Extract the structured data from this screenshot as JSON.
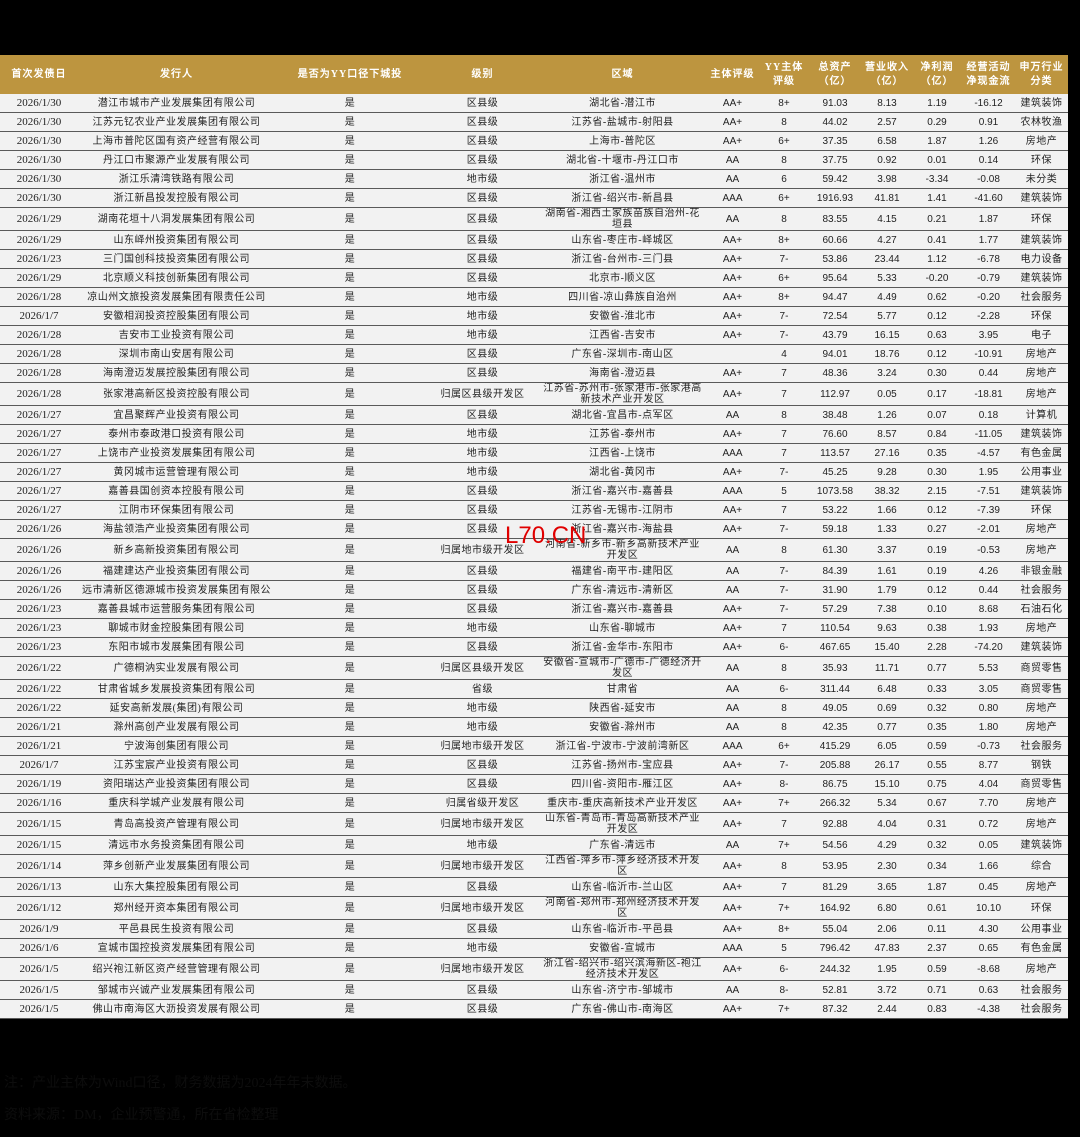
{
  "table": {
    "header_color": "#bd953f",
    "columns": [
      "首次发债日",
      "发行人",
      "是否为YY口径下城投",
      "级别",
      "区域",
      "主体评级",
      "YY主体评级",
      "总资产（亿）",
      "营业收入（亿）",
      "净利润（亿）",
      "经营活动净现金流",
      "申万行业分类"
    ],
    "rows": [
      [
        "2026/1/30",
        "潜江市城市产业发展集团有限公司",
        "是",
        "区县级",
        "湖北省-潜江市",
        "AA+",
        "8+",
        "91.03",
        "8.13",
        "1.19",
        "-16.12",
        "建筑装饰"
      ],
      [
        "2026/1/30",
        "江苏元钇农业产业发展集团有限公司",
        "是",
        "区县级",
        "江苏省-盐城市-射阳县",
        "AA+",
        "8",
        "44.02",
        "2.57",
        "0.29",
        "0.91",
        "农林牧渔"
      ],
      [
        "2026/1/30",
        "上海市普陀区国有资产经营有限公司",
        "是",
        "区县级",
        "上海市-普陀区",
        "AA+",
        "6+",
        "37.35",
        "6.58",
        "1.87",
        "1.26",
        "房地产"
      ],
      [
        "2026/1/30",
        "丹江口市聚源产业发展有限公司",
        "是",
        "区县级",
        "湖北省-十堰市-丹江口市",
        "AA",
        "8",
        "37.75",
        "0.92",
        "0.01",
        "0.14",
        "环保"
      ],
      [
        "2026/1/30",
        "浙江乐清湾铁路有限公司",
        "是",
        "地市级",
        "浙江省-温州市",
        "AA",
        "6",
        "59.42",
        "3.98",
        "-3.34",
        "-0.08",
        "未分类"
      ],
      [
        "2026/1/30",
        "浙江新昌投发控股有限公司",
        "是",
        "区县级",
        "浙江省-绍兴市-新昌县",
        "AAA",
        "6+",
        "1916.93",
        "41.81",
        "1.41",
        "-41.60",
        "建筑装饰"
      ],
      [
        "2026/1/29",
        "湖南花垣十八洞发展集团有限公司",
        "是",
        "区县级",
        "湖南省-湘西土家族苗族自治州-花垣县",
        "AA",
        "8",
        "83.55",
        "4.15",
        "0.21",
        "1.87",
        "环保"
      ],
      [
        "2026/1/29",
        "山东峄州投资集团有限公司",
        "是",
        "区县级",
        "山东省-枣庄市-峄城区",
        "AA+",
        "8+",
        "60.66",
        "4.27",
        "0.41",
        "1.77",
        "建筑装饰"
      ],
      [
        "2026/1/23",
        "三门国创科技投资集团有限公司",
        "是",
        "区县级",
        "浙江省-台州市-三门县",
        "AA+",
        "7-",
        "53.86",
        "23.44",
        "1.12",
        "-6.78",
        "电力设备"
      ],
      [
        "2026/1/29",
        "北京顺义科技创新集团有限公司",
        "是",
        "区县级",
        "北京市-顺义区",
        "AA+",
        "6+",
        "95.64",
        "5.33",
        "-0.20",
        "-0.79",
        "建筑装饰"
      ],
      [
        "2026/1/28",
        "凉山州文旅投资发展集团有限责任公司",
        "是",
        "地市级",
        "四川省-凉山彝族自治州",
        "AA+",
        "8+",
        "94.47",
        "4.49",
        "0.62",
        "-0.20",
        "社会服务"
      ],
      [
        "2026/1/7",
        "安徽相润投资控股集团有限公司",
        "是",
        "地市级",
        "安徽省-淮北市",
        "AA+",
        "7-",
        "72.54",
        "5.77",
        "0.12",
        "-2.28",
        "环保"
      ],
      [
        "2026/1/28",
        "吉安市工业投资有限公司",
        "是",
        "地市级",
        "江西省-吉安市",
        "AA+",
        "7-",
        "43.79",
        "16.15",
        "0.63",
        "3.95",
        "电子"
      ],
      [
        "2026/1/28",
        "深圳市南山安居有限公司",
        "是",
        "区县级",
        "广东省-深圳市-南山区",
        "",
        "4",
        "94.01",
        "18.76",
        "0.12",
        "-10.91",
        "房地产"
      ],
      [
        "2026/1/28",
        "海南澄迈发展控股集团有限公司",
        "是",
        "区县级",
        "海南省-澄迈县",
        "AA+",
        "7",
        "48.36",
        "3.24",
        "0.30",
        "0.44",
        "房地产"
      ],
      [
        "2026/1/28",
        "张家港高新区投资控股有限公司",
        "是",
        "归属区县级开发区",
        "江苏省-苏州市-张家港市-张家港高新技术产业开发区",
        "AA+",
        "7",
        "112.97",
        "0.05",
        "0.17",
        "-18.81",
        "房地产"
      ],
      [
        "2026/1/27",
        "宜昌聚辉产业投资有限公司",
        "是",
        "区县级",
        "湖北省-宜昌市-点军区",
        "AA",
        "8",
        "38.48",
        "1.26",
        "0.07",
        "0.18",
        "计算机"
      ],
      [
        "2026/1/27",
        "泰州市泰政港口投资有限公司",
        "是",
        "地市级",
        "江苏省-泰州市",
        "AA+",
        "7",
        "76.60",
        "8.57",
        "0.84",
        "-11.05",
        "建筑装饰"
      ],
      [
        "2026/1/27",
        "上饶市产业投资发展集团有限公司",
        "是",
        "地市级",
        "江西省-上饶市",
        "AAA",
        "7",
        "113.57",
        "27.16",
        "0.35",
        "-4.57",
        "有色金属"
      ],
      [
        "2026/1/27",
        "黄冈城市运营管理有限公司",
        "是",
        "地市级",
        "湖北省-黄冈市",
        "AA+",
        "7-",
        "45.25",
        "9.28",
        "0.30",
        "1.95",
        "公用事业"
      ],
      [
        "2026/1/27",
        "嘉善县国创资本控股有限公司",
        "是",
        "区县级",
        "浙江省-嘉兴市-嘉善县",
        "AAA",
        "5",
        "1073.58",
        "38.32",
        "2.15",
        "-7.51",
        "建筑装饰"
      ],
      [
        "2026/1/27",
        "江阴市环保集团有限公司",
        "是",
        "区县级",
        "江苏省-无锡市-江阴市",
        "AA+",
        "7",
        "53.22",
        "1.66",
        "0.12",
        "-7.39",
        "环保"
      ],
      [
        "2026/1/26",
        "海盐领浩产业投资集团有限公司",
        "是",
        "区县级",
        "浙江省-嘉兴市-海盐县",
        "AA+",
        "7-",
        "59.18",
        "1.33",
        "0.27",
        "-2.01",
        "房地产"
      ],
      [
        "2026/1/26",
        "新乡高新投资集团有限公司",
        "是",
        "归属地市级开发区",
        "河南省-新乡市-新乡高新技术产业开发区",
        "AA",
        "8",
        "61.30",
        "3.37",
        "0.19",
        "-0.53",
        "房地产"
      ],
      [
        "2026/1/26",
        "福建建达产业投资集团有限公司",
        "是",
        "区县级",
        "福建省-南平市-建阳区",
        "AA",
        "7-",
        "84.39",
        "1.61",
        "0.19",
        "4.26",
        "非银金融"
      ],
      [
        "2026/1/26",
        "远市清新区德源城市投资发展集团有限公",
        "是",
        "区县级",
        "广东省-清远市-清新区",
        "AA",
        "7-",
        "31.90",
        "1.79",
        "0.12",
        "0.44",
        "社会服务"
      ],
      [
        "2026/1/23",
        "嘉善县城市运营服务集团有限公司",
        "是",
        "区县级",
        "浙江省-嘉兴市-嘉善县",
        "AA+",
        "7-",
        "57.29",
        "7.38",
        "0.10",
        "8.68",
        "石油石化"
      ],
      [
        "2026/1/23",
        "聊城市财金控股集团有限公司",
        "是",
        "地市级",
        "山东省-聊城市",
        "AA+",
        "7",
        "110.54",
        "9.63",
        "0.38",
        "1.93",
        "房地产"
      ],
      [
        "2026/1/23",
        "东阳市城市发展集团有限公司",
        "是",
        "区县级",
        "浙江省-金华市-东阳市",
        "AA+",
        "6-",
        "467.65",
        "15.40",
        "2.28",
        "-74.20",
        "建筑装饰"
      ],
      [
        "2026/1/22",
        "广德桐汭实业发展有限公司",
        "是",
        "归属区县级开发区",
        "安徽省-宣城市-广德市-广德经济开发区",
        "AA",
        "8",
        "35.93",
        "11.71",
        "0.77",
        "5.53",
        "商贸零售"
      ],
      [
        "2026/1/22",
        "甘肃省城乡发展投资集团有限公司",
        "是",
        "省级",
        "甘肃省",
        "AA",
        "6-",
        "311.44",
        "6.48",
        "0.33",
        "3.05",
        "商贸零售"
      ],
      [
        "2026/1/22",
        "延安高新发展(集团)有限公司",
        "是",
        "地市级",
        "陕西省-延安市",
        "AA",
        "8",
        "49.05",
        "0.69",
        "0.32",
        "0.80",
        "房地产"
      ],
      [
        "2026/1/21",
        "滁州高创产业发展有限公司",
        "是",
        "地市级",
        "安徽省-滁州市",
        "AA",
        "8",
        "42.35",
        "0.77",
        "0.35",
        "1.80",
        "房地产"
      ],
      [
        "2026/1/21",
        "宁波海创集团有限公司",
        "是",
        "归属地市级开发区",
        "浙江省-宁波市-宁波前湾新区",
        "AAA",
        "6+",
        "415.29",
        "6.05",
        "0.59",
        "-0.73",
        "社会服务"
      ],
      [
        "2026/1/7",
        "江苏宝宸产业投资有限公司",
        "是",
        "区县级",
        "江苏省-扬州市-宝应县",
        "AA+",
        "7-",
        "205.88",
        "26.17",
        "0.55",
        "8.77",
        "钢铁"
      ],
      [
        "2026/1/19",
        "资阳瑞达产业投资集团有限公司",
        "是",
        "区县级",
        "四川省-资阳市-雁江区",
        "AA+",
        "8-",
        "86.75",
        "15.10",
        "0.75",
        "4.04",
        "商贸零售"
      ],
      [
        "2026/1/16",
        "重庆科学城产业发展有限公司",
        "是",
        "归属省级开发区",
        "重庆市-重庆高新技术产业开发区",
        "AA+",
        "7+",
        "266.32",
        "5.34",
        "0.67",
        "7.70",
        "房地产"
      ],
      [
        "2026/1/15",
        "青岛高投资产管理有限公司",
        "是",
        "归属地市级开发区",
        "山东省-青岛市-青岛高新技术产业开发区",
        "AA+",
        "7",
        "92.88",
        "4.04",
        "0.31",
        "0.72",
        "房地产"
      ],
      [
        "2026/1/15",
        "清远市水务投资集团有限公司",
        "是",
        "地市级",
        "广东省-清远市",
        "AA",
        "7+",
        "54.56",
        "4.29",
        "0.32",
        "0.05",
        "建筑装饰"
      ],
      [
        "2026/1/14",
        "萍乡创新产业发展集团有限公司",
        "是",
        "归属地市级开发区",
        "江西省-萍乡市-萍乡经济技术开发区",
        "AA+",
        "8",
        "53.95",
        "2.30",
        "0.34",
        "1.66",
        "综合"
      ],
      [
        "2026/1/13",
        "山东大集控股集团有限公司",
        "是",
        "区县级",
        "山东省-临沂市-兰山区",
        "AA+",
        "7",
        "81.29",
        "3.65",
        "1.87",
        "0.45",
        "房地产"
      ],
      [
        "2026/1/12",
        "郑州经开资本集团有限公司",
        "是",
        "归属地市级开发区",
        "河南省-郑州市-郑州经济技术开发区",
        "AA+",
        "7+",
        "164.92",
        "6.80",
        "0.61",
        "10.10",
        "环保"
      ],
      [
        "2026/1/9",
        "平邑县民生投资有限公司",
        "是",
        "区县级",
        "山东省-临沂市-平邑县",
        "AA+",
        "8+",
        "55.04",
        "2.06",
        "0.11",
        "4.30",
        "公用事业"
      ],
      [
        "2026/1/6",
        "宣城市国控投资发展集团有限公司",
        "是",
        "地市级",
        "安徽省-宣城市",
        "AAA",
        "5",
        "796.42",
        "47.83",
        "2.37",
        "0.65",
        "有色金属"
      ],
      [
        "2026/1/5",
        "绍兴袍江新区资产经营管理有限公司",
        "是",
        "归属地市级开发区",
        "浙江省-绍兴市-绍兴滨海新区-袍江经济技术开发区",
        "AA+",
        "6-",
        "244.32",
        "1.95",
        "0.59",
        "-8.68",
        "房地产"
      ],
      [
        "2026/1/5",
        "邹城市兴诚产业发展集团有限公司",
        "是",
        "区县级",
        "山东省-济宁市-邹城市",
        "AA",
        "8-",
        "52.81",
        "3.72",
        "0.71",
        "0.63",
        "社会服务"
      ],
      [
        "2026/1/5",
        "佛山市南海区大沥投资发展有限公司",
        "是",
        "区县级",
        "广东省-佛山市-南海区",
        "AA+",
        "7+",
        "87.32",
        "2.44",
        "0.83",
        "-4.38",
        "社会服务"
      ]
    ]
  },
  "watermark": "L70.CN",
  "notes": {
    "note": "注：产业主体为Wind口径，财务数据为2024年年末数据。",
    "source": "资料来源：DM，企业预警通，所在省检整理"
  }
}
